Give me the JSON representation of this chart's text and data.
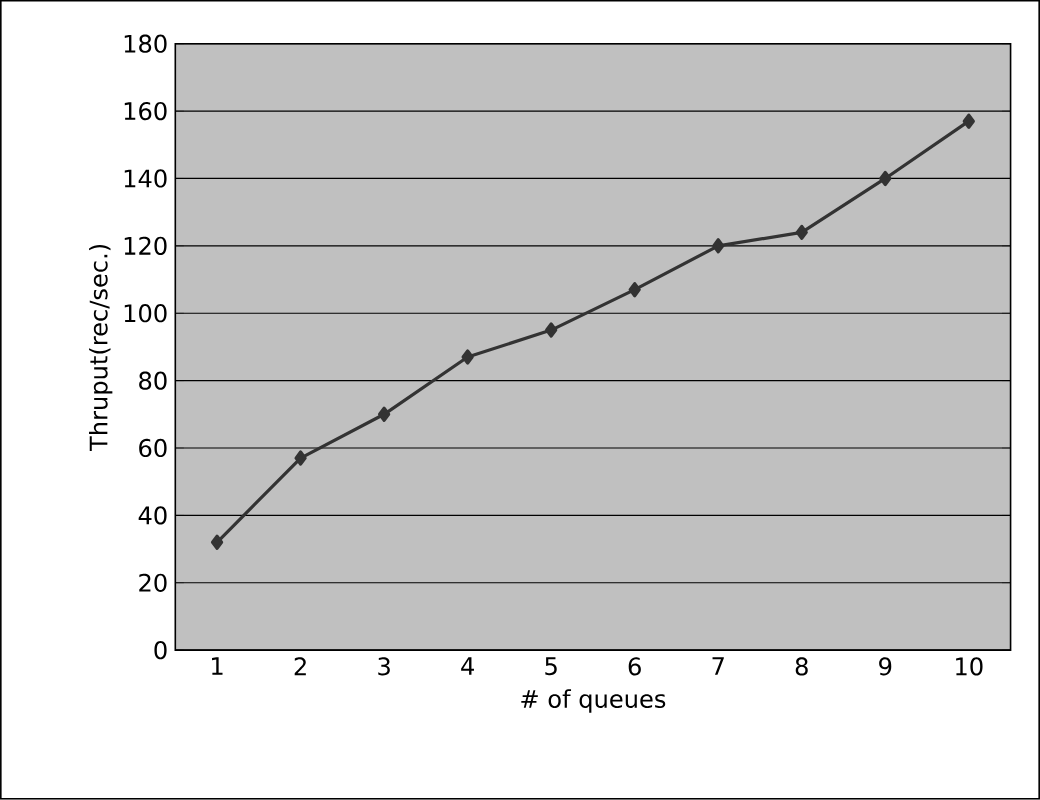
{
  "chart_data": {
    "type": "line",
    "xlabel": "# of queues",
    "ylabel": "Thruput(rec/sec.)",
    "categories": [
      "1",
      "2",
      "3",
      "4",
      "5",
      "6",
      "7",
      "8",
      "9",
      "10"
    ],
    "series": [
      {
        "color": "#333333",
        "values": [
          32,
          57,
          70,
          87,
          95,
          107,
          120,
          124,
          140,
          157
        ]
      }
    ],
    "ylim": [
      0,
      180
    ],
    "yticks": [
      0,
      20,
      40,
      60,
      80,
      100,
      120,
      140,
      160,
      180
    ],
    "grid": "y",
    "marker": "diamond",
    "line_style": "solid"
  }
}
